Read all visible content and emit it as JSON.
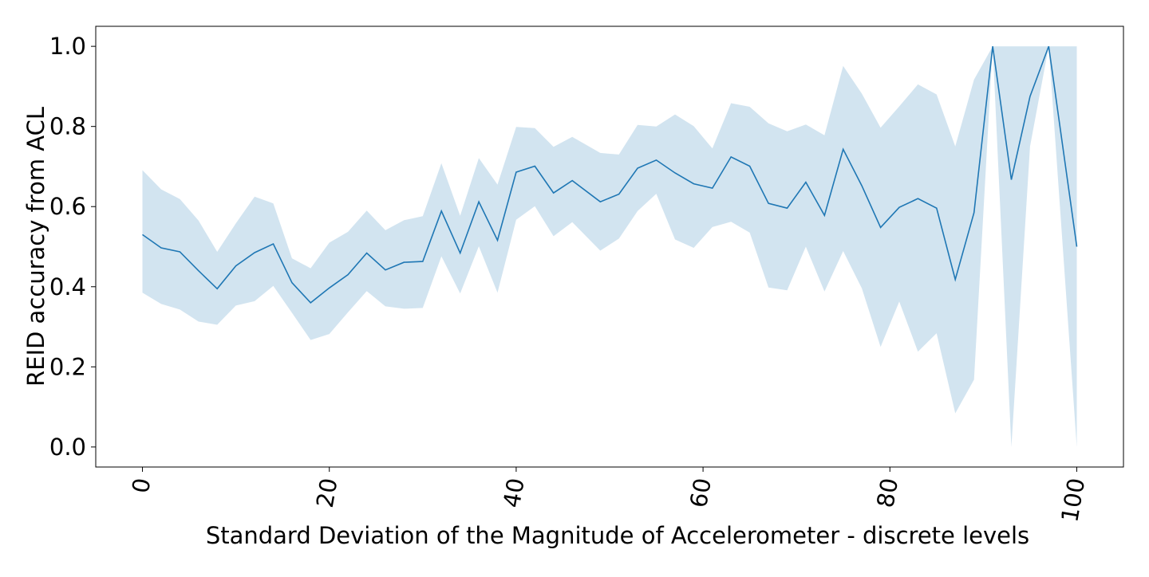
{
  "chart_data": {
    "type": "line",
    "title": "",
    "xlabel": "Standard Deviation of the Magnitude of Accelerometer - discrete levels",
    "ylabel": "REID accuracy from ACL",
    "xlim": [
      -5,
      105
    ],
    "ylim": [
      -0.05,
      1.05
    ],
    "x_ticks": [
      0,
      20,
      40,
      60,
      80,
      100
    ],
    "x_tick_labels": [
      "0",
      "20",
      "40",
      "60",
      "80",
      "100"
    ],
    "y_ticks": [
      0.0,
      0.2,
      0.4,
      0.6,
      0.8,
      1.0
    ],
    "y_tick_labels": [
      "0.0",
      "0.2",
      "0.4",
      "0.6",
      "0.8",
      "1.0"
    ],
    "grid": false,
    "legend": "none",
    "colors": {
      "line": "#1f77b4",
      "band": "#1f77b4",
      "band_opacity": 0.2,
      "axis": "#000000"
    },
    "series": [
      {
        "x": [
          0,
          2,
          4,
          6,
          8,
          10,
          12,
          14,
          16,
          18,
          20,
          22,
          24,
          26,
          28,
          30,
          32,
          34,
          36,
          38,
          40,
          42,
          44,
          46,
          49,
          51,
          53,
          55,
          57,
          59,
          61,
          63,
          65,
          67,
          69,
          71,
          73,
          75,
          77,
          79,
          81,
          83,
          85,
          87,
          89,
          91,
          93,
          95,
          97,
          100
        ],
        "y": [
          0.53,
          0.497,
          0.487,
          0.44,
          0.395,
          0.452,
          0.485,
          0.507,
          0.41,
          0.36,
          0.397,
          0.43,
          0.484,
          0.442,
          0.461,
          0.463,
          0.589,
          0.484,
          0.612,
          0.516,
          0.686,
          0.701,
          0.634,
          0.665,
          0.612,
          0.631,
          0.696,
          0.716,
          0.684,
          0.657,
          0.646,
          0.724,
          0.701,
          0.608,
          0.596,
          0.661,
          0.578,
          0.743,
          0.652,
          0.548,
          0.598,
          0.62,
          0.596,
          0.418,
          0.585,
          1.0,
          0.667,
          0.875,
          1.0,
          0.5
        ],
        "ci_lower": [
          0.385,
          0.357,
          0.343,
          0.313,
          0.305,
          0.353,
          0.364,
          0.402,
          0.335,
          0.267,
          0.282,
          0.336,
          0.389,
          0.351,
          0.345,
          0.347,
          0.476,
          0.383,
          0.501,
          0.385,
          0.567,
          0.601,
          0.526,
          0.561,
          0.49,
          0.52,
          0.589,
          0.632,
          0.518,
          0.497,
          0.549,
          0.562,
          0.535,
          0.398,
          0.391,
          0.5,
          0.388,
          0.489,
          0.396,
          0.25,
          0.363,
          0.238,
          0.284,
          0.084,
          0.168,
          1.0,
          0.0,
          0.75,
          1.0,
          0.0
        ],
        "ci_upper": [
          0.691,
          0.643,
          0.619,
          0.565,
          0.487,
          0.558,
          0.625,
          0.608,
          0.471,
          0.446,
          0.51,
          0.537,
          0.59,
          0.541,
          0.566,
          0.576,
          0.708,
          0.577,
          0.721,
          0.655,
          0.799,
          0.796,
          0.749,
          0.774,
          0.734,
          0.73,
          0.804,
          0.8,
          0.83,
          0.801,
          0.745,
          0.858,
          0.849,
          0.808,
          0.788,
          0.805,
          0.778,
          0.951,
          0.882,
          0.797,
          0.85,
          0.905,
          0.88,
          0.75,
          0.917,
          1.0,
          1.0,
          1.0,
          1.0,
          1.0
        ]
      }
    ]
  }
}
